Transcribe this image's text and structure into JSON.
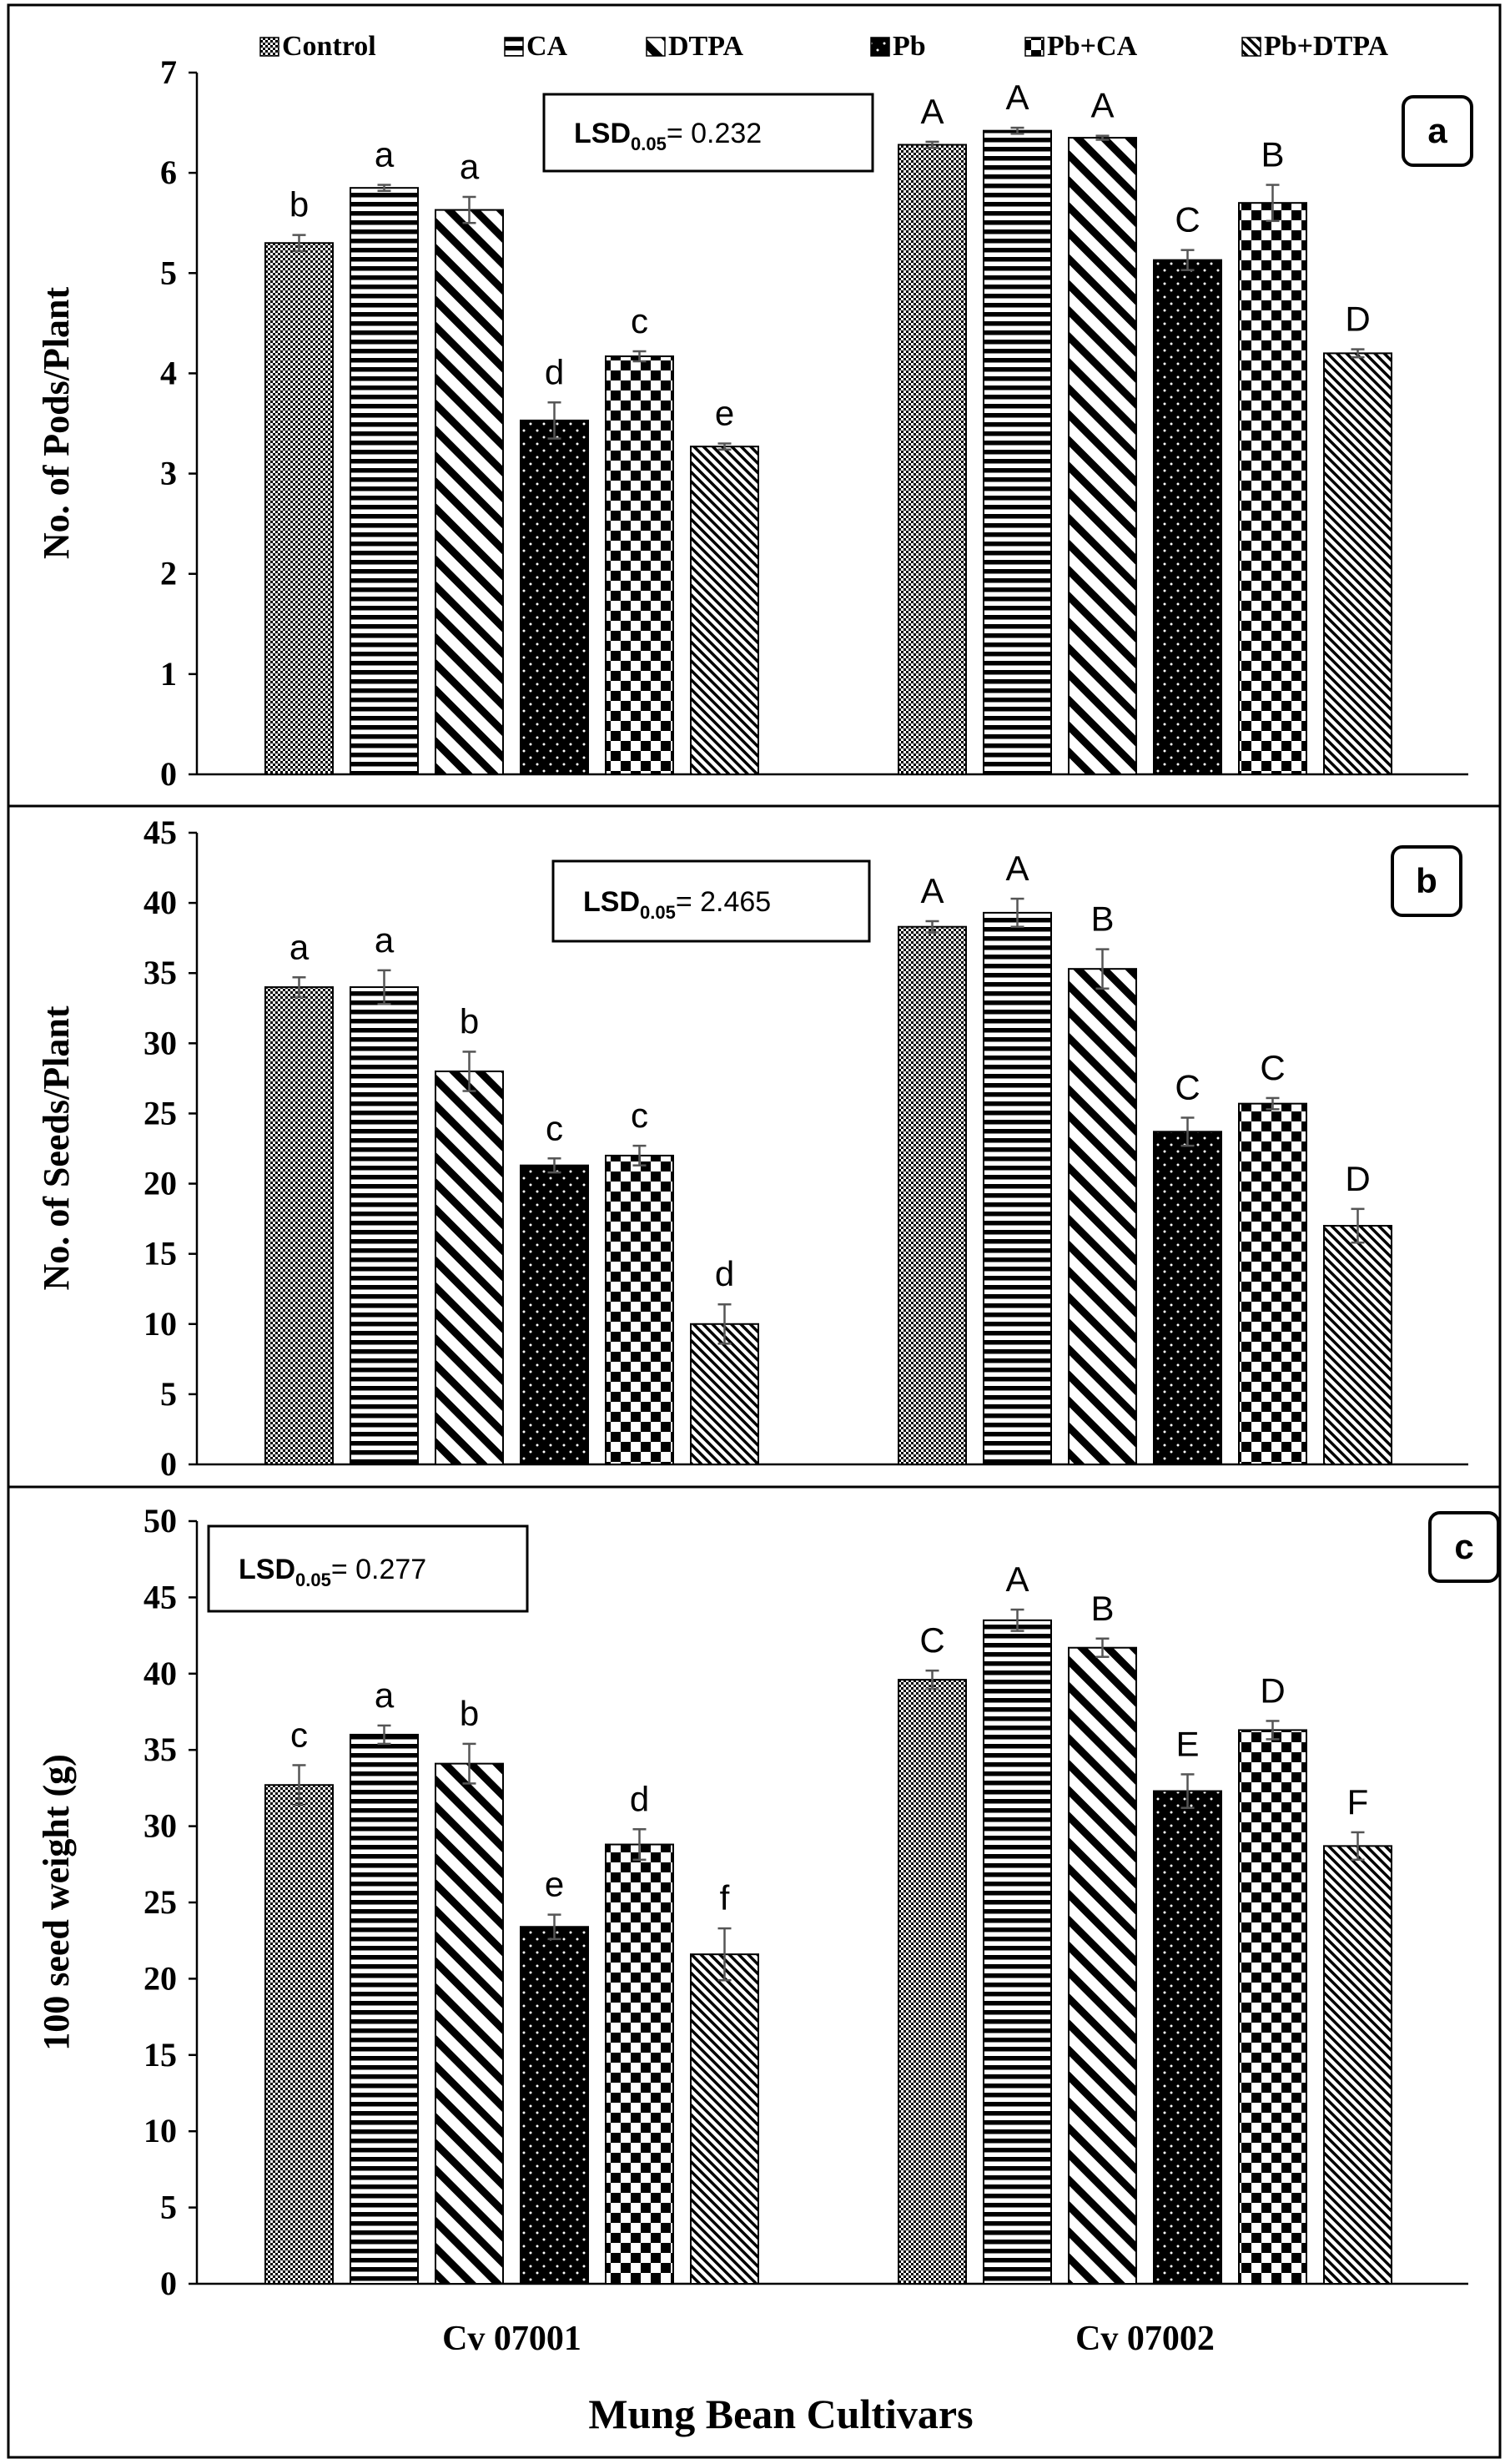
{
  "legend": [
    {
      "label": "Control",
      "pattern": "control"
    },
    {
      "label": "CA",
      "pattern": "ca"
    },
    {
      "label": "DTPA",
      "pattern": "dtpa"
    },
    {
      "label": "Pb",
      "pattern": "pb"
    },
    {
      "label": "Pb+CA",
      "pattern": "pbca"
    },
    {
      "label": "Pb+DTPA",
      "pattern": "pbdtpa"
    }
  ],
  "xlabel": "Mung Bean Cultivars",
  "categories": [
    "Cv 07001",
    "Cv 07002"
  ],
  "chart_data": [
    {
      "type": "bar",
      "panel": "a",
      "ylabel": "No. of Pods/Plant",
      "ylim": [
        0,
        7
      ],
      "ystep": 1,
      "lsd": {
        "label": "LSD",
        "sub": "0.05",
        "value": "= 0.232"
      },
      "categories": [
        "Cv 07001",
        "Cv 07002"
      ],
      "series": [
        {
          "name": "Control",
          "values": [
            5.3,
            6.28
          ],
          "errors": [
            0.08,
            0.03
          ],
          "letters": [
            "b",
            "A"
          ]
        },
        {
          "name": "CA",
          "values": [
            5.85,
            6.42
          ],
          "errors": [
            0.03,
            0.03
          ],
          "letters": [
            "a",
            "A"
          ]
        },
        {
          "name": "DTPA",
          "values": [
            5.63,
            6.35
          ],
          "errors": [
            0.13,
            0.02
          ],
          "letters": [
            "a",
            "A"
          ]
        },
        {
          "name": "Pb",
          "values": [
            3.53,
            5.13
          ],
          "errors": [
            0.18,
            0.1
          ],
          "letters": [
            "d",
            "C"
          ]
        },
        {
          "name": "Pb+CA",
          "values": [
            4.17,
            5.7
          ],
          "errors": [
            0.05,
            0.18
          ],
          "letters": [
            "c",
            "B"
          ]
        },
        {
          "name": "Pb+DTPA",
          "values": [
            3.27,
            4.2
          ],
          "errors": [
            0.03,
            0.04
          ],
          "letters": [
            "e",
            "D"
          ]
        }
      ]
    },
    {
      "type": "bar",
      "panel": "b",
      "ylabel": "No. of Seeds/Plant",
      "ylim": [
        0,
        45
      ],
      "ystep": 5,
      "lsd": {
        "label": "LSD",
        "sub": "0.05",
        "value": "= 2.465"
      },
      "categories": [
        "Cv 07001",
        "Cv 07002"
      ],
      "series": [
        {
          "name": "Control",
          "values": [
            34,
            38.3
          ],
          "errors": [
            0.7,
            0.4
          ],
          "letters": [
            "a",
            "A"
          ]
        },
        {
          "name": "CA",
          "values": [
            34,
            39.3
          ],
          "errors": [
            1.2,
            1.0
          ],
          "letters": [
            "a",
            "A"
          ]
        },
        {
          "name": "DTPA",
          "values": [
            28,
            35.3
          ],
          "errors": [
            1.4,
            1.4
          ],
          "letters": [
            "b",
            "B"
          ]
        },
        {
          "name": "Pb",
          "values": [
            21.3,
            23.7
          ],
          "errors": [
            0.5,
            1.0
          ],
          "letters": [
            "c",
            "C"
          ]
        },
        {
          "name": "Pb+CA",
          "values": [
            22,
            25.7
          ],
          "errors": [
            0.7,
            0.4
          ],
          "letters": [
            "c",
            "C"
          ]
        },
        {
          "name": "Pb+DTPA",
          "values": [
            10,
            17
          ],
          "errors": [
            1.4,
            1.2
          ],
          "letters": [
            "d",
            "D"
          ]
        }
      ]
    },
    {
      "type": "bar",
      "panel": "c",
      "ylabel": "100 seed weight (g)",
      "ylim": [
        0,
        50
      ],
      "ystep": 5,
      "lsd": {
        "label": "LSD",
        "sub": "0.05",
        "value": "= 0.277"
      },
      "categories": [
        "Cv 07001",
        "Cv 07002"
      ],
      "series": [
        {
          "name": "Control",
          "values": [
            32.7,
            39.6
          ],
          "errors": [
            1.3,
            0.6
          ],
          "letters": [
            "c",
            "C"
          ]
        },
        {
          "name": "CA",
          "values": [
            36,
            43.5
          ],
          "errors": [
            0.6,
            0.7
          ],
          "letters": [
            "a",
            "A"
          ]
        },
        {
          "name": "DTPA",
          "values": [
            34.1,
            41.7
          ],
          "errors": [
            1.3,
            0.6
          ],
          "letters": [
            "b",
            "B"
          ]
        },
        {
          "name": "Pb",
          "values": [
            23.4,
            32.3
          ],
          "errors": [
            0.8,
            1.1
          ],
          "letters": [
            "e",
            "E"
          ]
        },
        {
          "name": "Pb+CA",
          "values": [
            28.8,
            36.3
          ],
          "errors": [
            1.0,
            0.6
          ],
          "letters": [
            "d",
            "D"
          ]
        },
        {
          "name": "Pb+DTPA",
          "values": [
            21.6,
            28.7
          ],
          "errors": [
            1.7,
            0.9
          ],
          "letters": [
            "f",
            "F"
          ]
        }
      ]
    }
  ]
}
